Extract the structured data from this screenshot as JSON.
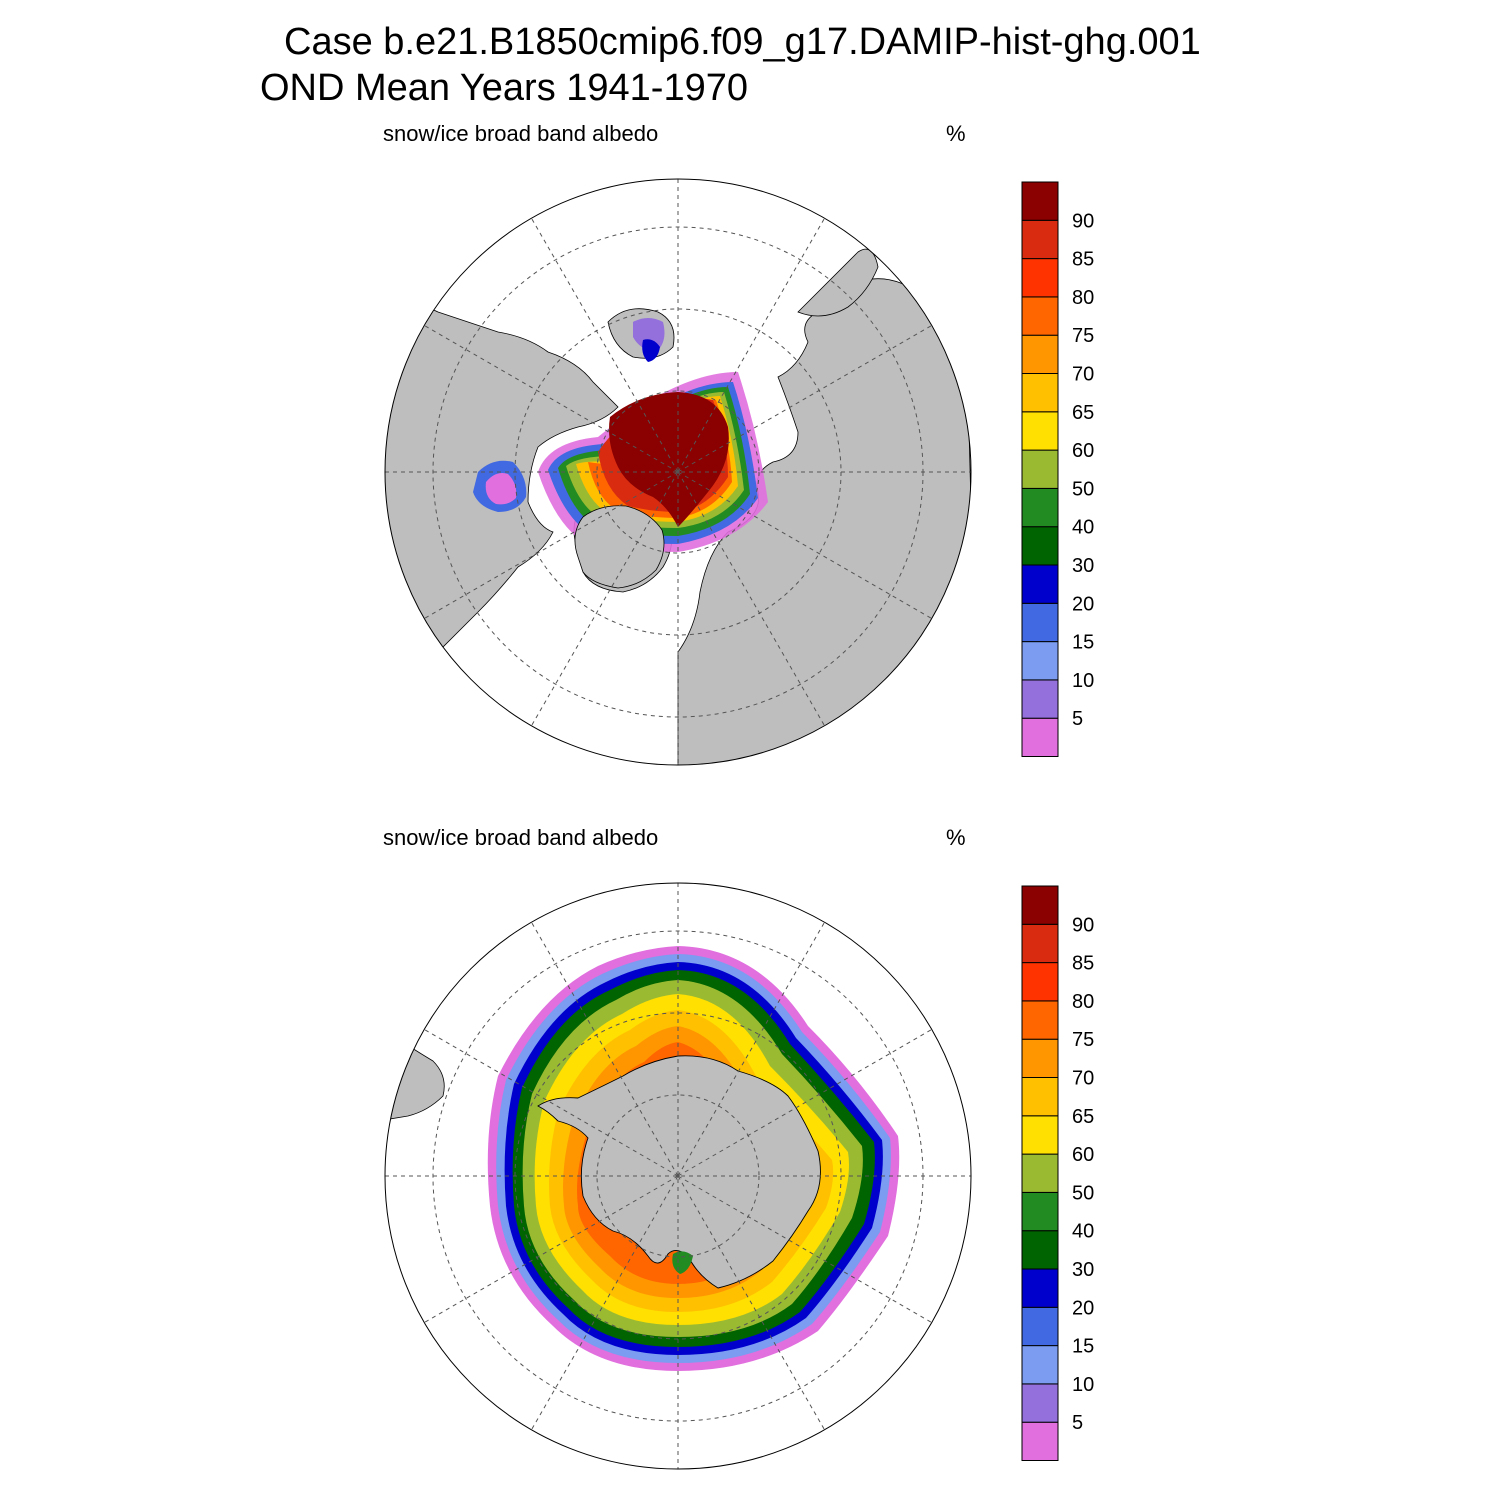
{
  "header": {
    "title_line1": "Case b.e21.B1850cmip6.f09_g17.DAMIP-hist-ghg.001",
    "title_line2": "OND Mean   Years 1941-1970"
  },
  "panels": [
    {
      "id": "north",
      "variable": "snow/ice broad band albedo",
      "units": "%",
      "hemisphere": "Arctic"
    },
    {
      "id": "south",
      "variable": "snow/ice broad band albedo",
      "units": "%",
      "hemisphere": "Antarctic"
    }
  ],
  "colorbar": {
    "labels": [
      "5",
      "10",
      "15",
      "20",
      "30",
      "40",
      "50",
      "60",
      "65",
      "70",
      "75",
      "80",
      "85",
      "90"
    ],
    "colors": [
      "#e16fde",
      "#9370db",
      "#7b9cf0",
      "#4169e1",
      "#0000cd",
      "#006400",
      "#228b22",
      "#9aba32",
      "#ffe000",
      "#ffc000",
      "#ff9600",
      "#ff6600",
      "#ff3300",
      "#d92b10",
      "#8b0000"
    ]
  },
  "map_colors": {
    "land": "#bebebe",
    "ocean": "#ffffff",
    "grid": "#555555",
    "coast": "#000000"
  }
}
